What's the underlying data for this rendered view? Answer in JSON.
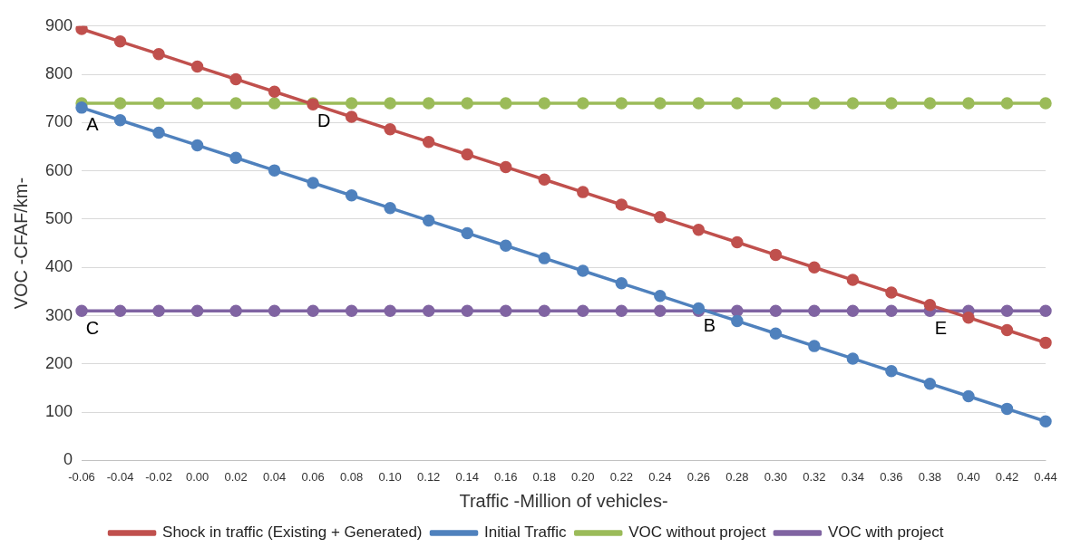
{
  "chart_data": {
    "type": "line",
    "xlabel": "Traffic -Million of vehicles-",
    "ylabel": "VOC -CFAF/km-",
    "categories": [
      "-0.06",
      "-0.04",
      "-0.02",
      "0.00",
      "0.02",
      "0.04",
      "0.06",
      "0.08",
      "0.10",
      "0.12",
      "0.14",
      "0.16",
      "0.18",
      "0.20",
      "0.22",
      "0.24",
      "0.26",
      "0.28",
      "0.30",
      "0.32",
      "0.34",
      "0.36",
      "0.38",
      "0.40",
      "0.42",
      "0.44"
    ],
    "series": [
      {
        "name": "Shock in traffic (Existing + Generated)",
        "color": "#c0504d",
        "values": [
          894,
          868,
          842,
          816,
          790,
          764,
          738,
          712,
          686,
          660,
          634,
          608,
          582,
          556,
          530,
          504,
          478,
          452,
          426,
          400,
          374,
          348,
          322,
          296,
          270,
          244
        ]
      },
      {
        "name": "Initial Traffic",
        "color": "#4f81bd",
        "values": [
          731,
          705,
          679,
          653,
          627,
          601,
          575,
          549,
          523,
          497,
          471,
          445,
          419,
          393,
          367,
          341,
          315,
          289,
          263,
          237,
          211,
          185,
          159,
          133,
          107,
          81
        ]
      },
      {
        "name": "VOC without project",
        "color": "#9bbb59",
        "values": [
          740,
          740,
          740,
          740,
          740,
          740,
          740,
          740,
          740,
          740,
          740,
          740,
          740,
          740,
          740,
          740,
          740,
          740,
          740,
          740,
          740,
          740,
          740,
          740,
          740,
          740
        ]
      },
      {
        "name": "VOC with project",
        "color": "#8064a2",
        "values": [
          310,
          310,
          310,
          310,
          310,
          310,
          310,
          310,
          310,
          310,
          310,
          310,
          310,
          310,
          310,
          310,
          310,
          310,
          310,
          310,
          310,
          310,
          310,
          310,
          310,
          310
        ]
      }
    ],
    "ylim": [
      0,
      900
    ],
    "yticks": [
      0,
      100,
      200,
      300,
      400,
      500,
      600,
      700,
      800,
      900
    ],
    "grid": "y",
    "legend": "bottom",
    "marker": "circle",
    "line_style": "solid",
    "annotations": [
      {
        "text": "A",
        "x": "-0.06",
        "y": 731
      },
      {
        "text": "D",
        "x": "0.06",
        "y": 740
      },
      {
        "text": "C",
        "x": "-0.06",
        "y": 310
      },
      {
        "text": "B",
        "x": "0.26",
        "y": 315
      },
      {
        "text": "E",
        "x": "0.38",
        "y": 310
      }
    ]
  }
}
